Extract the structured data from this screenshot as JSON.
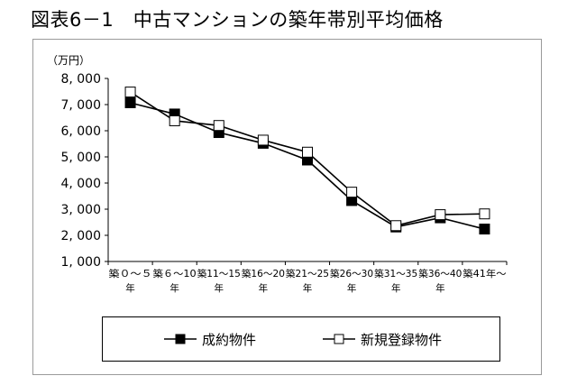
{
  "figure": {
    "title": "図表6－1　中古マンションの築年帯別平均価格"
  },
  "chart_data": {
    "type": "line",
    "title": "中古マンションの築年帯別平均価格",
    "ylabel": "（万円）",
    "xlabel": "",
    "ylim": [
      1000,
      8000
    ],
    "yticks": [
      1000,
      2000,
      3000,
      4000,
      5000,
      6000,
      7000,
      8000
    ],
    "ytick_labels": [
      "1, 000",
      "2, 000",
      "3, 000",
      "4, 000",
      "5, 000",
      "6, 000",
      "7, 000",
      "8, 000"
    ],
    "grid": false,
    "legend_position": "bottom",
    "categories": [
      {
        "line1": "築０～５",
        "line2": "年"
      },
      {
        "line1": "築６～10",
        "line2": "年"
      },
      {
        "line1": "築11～15",
        "line2": "年"
      },
      {
        "line1": "築16～20",
        "line2": "年"
      },
      {
        "line1": "築21～25",
        "line2": "年"
      },
      {
        "line1": "築26～30",
        "line2": "年"
      },
      {
        "line1": "築31～35",
        "line2": "年"
      },
      {
        "line1": "築36～40",
        "line2": "年"
      },
      {
        "line1": "築41年～",
        "line2": ""
      }
    ],
    "series": [
      {
        "name": "成約物件",
        "marker": "filled-square",
        "color": "#000000",
        "values": [
          7070,
          6640,
          5930,
          5520,
          4880,
          3330,
          2320,
          2670,
          2240
        ]
      },
      {
        "name": "新規登録物件",
        "marker": "open-square",
        "color": "#000000",
        "values": [
          7480,
          6380,
          6200,
          5640,
          5180,
          3650,
          2370,
          2790,
          2820
        ]
      }
    ]
  }
}
